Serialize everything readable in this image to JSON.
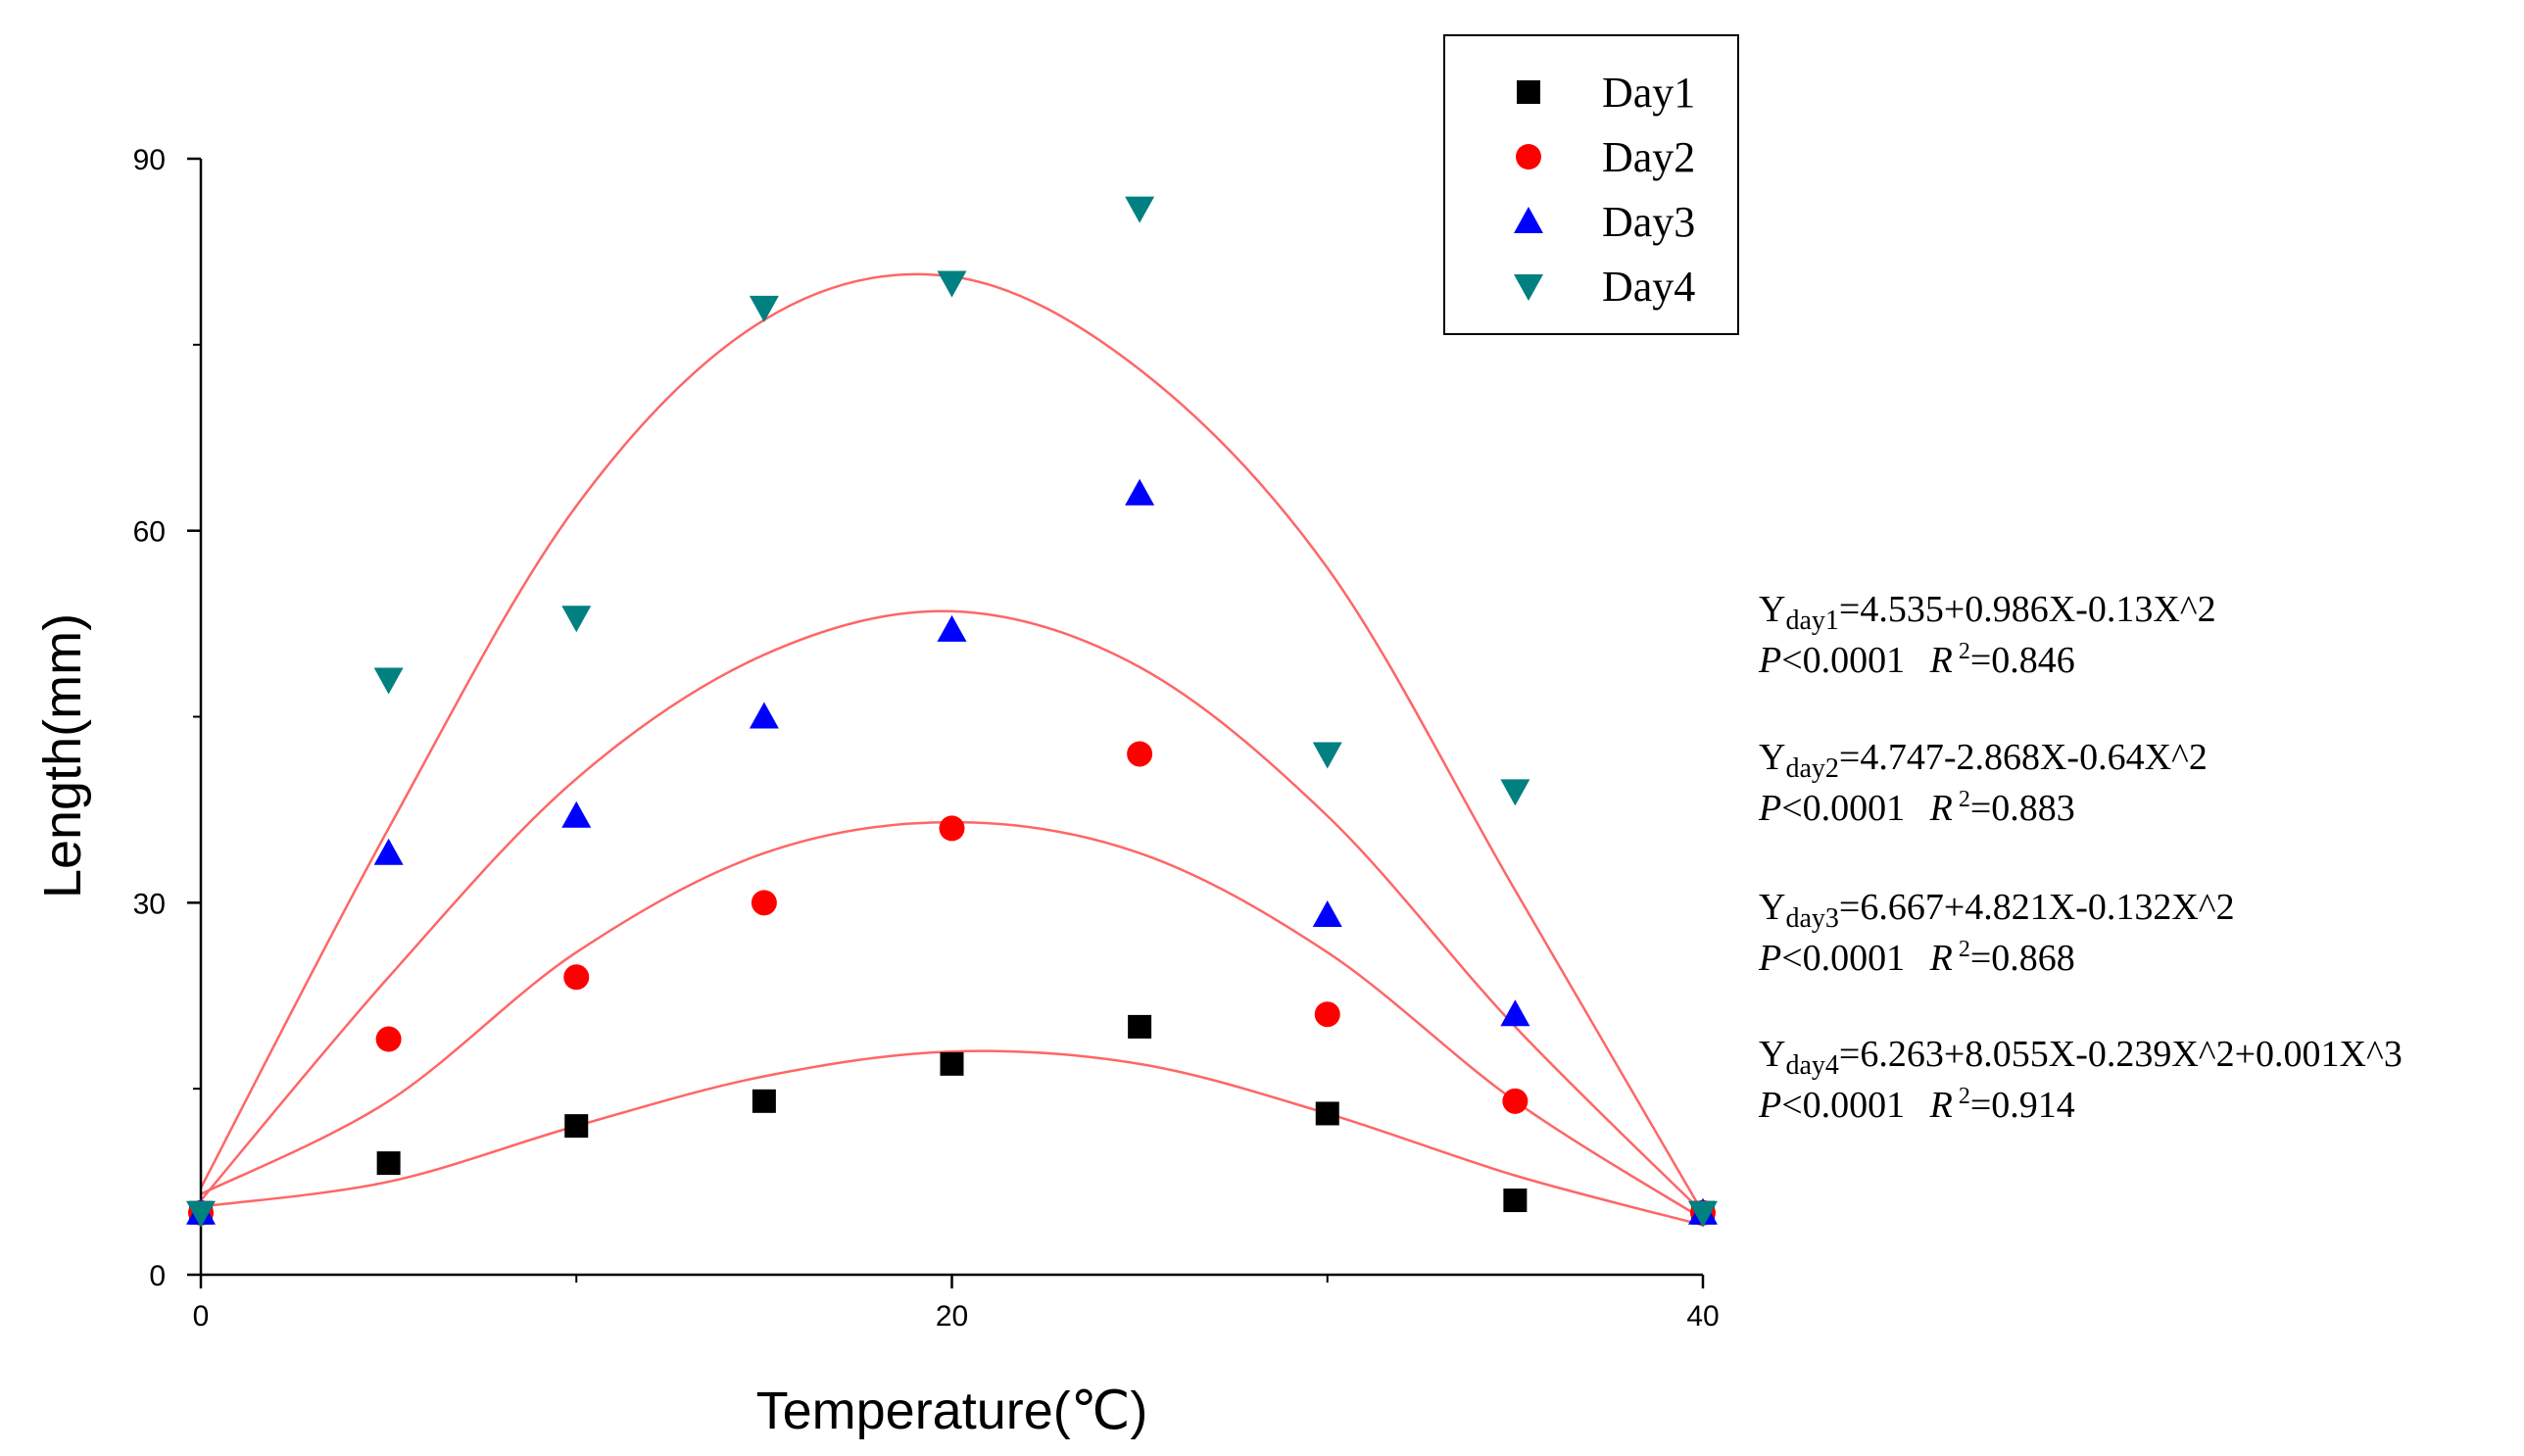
{
  "chart_data": {
    "type": "scatter",
    "title": "",
    "xlabel": "Temperature(℃)",
    "ylabel": "Length(mm)",
    "xlim": [
      0,
      40
    ],
    "ylim": [
      0,
      90
    ],
    "xticks": [
      "0",
      "20",
      "40"
    ],
    "yticks": [
      "0",
      "30",
      "60",
      "90"
    ],
    "x": [
      0,
      5,
      10,
      15,
      20,
      25,
      30,
      35,
      40
    ],
    "series": [
      {
        "name": "Day1",
        "marker": "square",
        "color": "#000000",
        "values": [
          5,
          9,
          12,
          14,
          17,
          20,
          13,
          6,
          5
        ],
        "fit": [
          [
            0,
            5.5
          ],
          [
            5,
            7.5
          ],
          [
            10,
            12
          ],
          [
            15,
            16
          ],
          [
            20,
            18
          ],
          [
            25,
            17
          ],
          [
            30,
            13
          ],
          [
            35,
            8
          ],
          [
            40,
            4
          ]
        ]
      },
      {
        "name": "Day2",
        "marker": "circle",
        "color": "#ff0000",
        "values": [
          5,
          19,
          24,
          30,
          36,
          42,
          21,
          14,
          5
        ],
        "fit": [
          [
            0,
            6.5
          ],
          [
            5,
            14
          ],
          [
            10,
            26
          ],
          [
            15,
            34
          ],
          [
            20,
            36.5
          ],
          [
            25,
            34
          ],
          [
            30,
            26
          ],
          [
            35,
            14
          ],
          [
            40,
            4.5
          ]
        ]
      },
      {
        "name": "Day3",
        "marker": "triangle-up",
        "color": "#0000ff",
        "values": [
          5,
          34,
          37,
          45,
          52,
          63,
          29,
          21,
          5
        ],
        "fit": [
          [
            0,
            6
          ],
          [
            5,
            24
          ],
          [
            10,
            40
          ],
          [
            15,
            50
          ],
          [
            20,
            53.5
          ],
          [
            25,
            49
          ],
          [
            30,
            37
          ],
          [
            35,
            20
          ],
          [
            40,
            5
          ]
        ]
      },
      {
        "name": "Day4",
        "marker": "triangle-down",
        "color": "#008080",
        "values": [
          5,
          48,
          53,
          78,
          80,
          86,
          42,
          39,
          5
        ],
        "fit": [
          [
            0,
            7
          ],
          [
            5,
            36
          ],
          [
            10,
            62
          ],
          [
            15,
            77
          ],
          [
            20,
            80.5
          ],
          [
            25,
            73
          ],
          [
            30,
            57
          ],
          [
            35,
            31
          ],
          [
            40,
            5
          ]
        ]
      }
    ],
    "fit_color": "#ff6666",
    "legend": {
      "placement": "top-right",
      "entries": [
        "Day1",
        "Day2",
        "Day3",
        "Day4"
      ]
    },
    "annotations": [
      {
        "y_main": "Y",
        "y_sub": "day1",
        "formula": "=4.535+0.986X-0.13X^2",
        "p_label": "P",
        "p_text": "<0.0001",
        "r_label": "R",
        "r_sup": "2",
        "r_text": "=0.846"
      },
      {
        "y_main": "Y",
        "y_sub": "day2",
        "formula": "=4.747-2.868X-0.64X^2",
        "p_label": "P",
        "p_text": "<0.0001",
        "r_label": "R",
        "r_sup": "2",
        "r_text": "=0.883"
      },
      {
        "y_main": "Y",
        "y_sub": "day3",
        "formula": "=6.667+4.821X-0.132X^2",
        "p_label": "P",
        "p_text": "<0.0001",
        "r_label": "R",
        "r_sup": "2",
        "r_text": "=0.868"
      },
      {
        "y_main": "Y",
        "y_sub": "day4",
        "formula": "=6.263+8.055X-0.239X^2+0.001X^3",
        "p_label": "P",
        "p_text": "<0.0001",
        "r_label": "R",
        "r_sup": "2",
        "r_text": "=0.914"
      }
    ]
  }
}
